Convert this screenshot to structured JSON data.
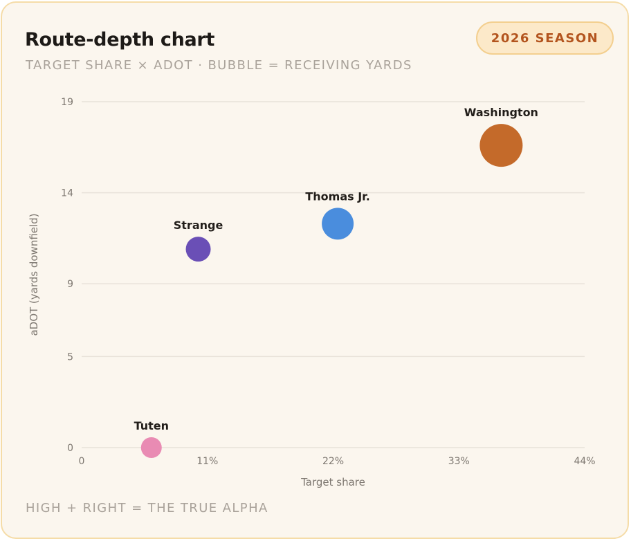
{
  "header": {
    "title": "Route-depth chart",
    "subtitle": "TARGET SHARE × ADOT · BUBBLE = RECEIVING YARDS",
    "badge": "2026 SEASON"
  },
  "footer": {
    "note": "HIGH + RIGHT = THE TRUE ALPHA"
  },
  "colors": {
    "card_bg": "#fbf6ee",
    "card_border": "#f5dca8",
    "badge_text": "#b3541e",
    "grid": "#e8e2d9"
  },
  "chart_data": {
    "type": "scatter",
    "xlabel": "Target share",
    "ylabel": "aDOT (yards downfield)",
    "xlim": [
      0,
      44
    ],
    "ylim": [
      0,
      19
    ],
    "xticks": [
      {
        "value": 0,
        "label": "0"
      },
      {
        "value": 11,
        "label": "11%"
      },
      {
        "value": 22,
        "label": "22%"
      },
      {
        "value": 33,
        "label": "33%"
      },
      {
        "value": 44,
        "label": "44%"
      }
    ],
    "yticks": [
      {
        "value": 0,
        "label": "0"
      },
      {
        "value": 5,
        "label": "5"
      },
      {
        "value": 9,
        "label": "9"
      },
      {
        "value": 14,
        "label": "14"
      },
      {
        "value": 19,
        "label": "19"
      }
    ],
    "grid": "horizontal",
    "points": [
      {
        "label": "Tuten",
        "x": 6.1,
        "y": 0.0,
        "size_rank": 1,
        "color": "#e98bb3"
      },
      {
        "label": "Strange",
        "x": 10.2,
        "y": 10.9,
        "size_rank": 2,
        "color": "#6a4fb6"
      },
      {
        "label": "Thomas Jr.",
        "x": 22.4,
        "y": 12.3,
        "size_rank": 3,
        "color": "#4a8ddd"
      },
      {
        "label": "Washington",
        "x": 36.7,
        "y": 16.6,
        "size_rank": 4,
        "color": "#c46a2a"
      }
    ]
  }
}
